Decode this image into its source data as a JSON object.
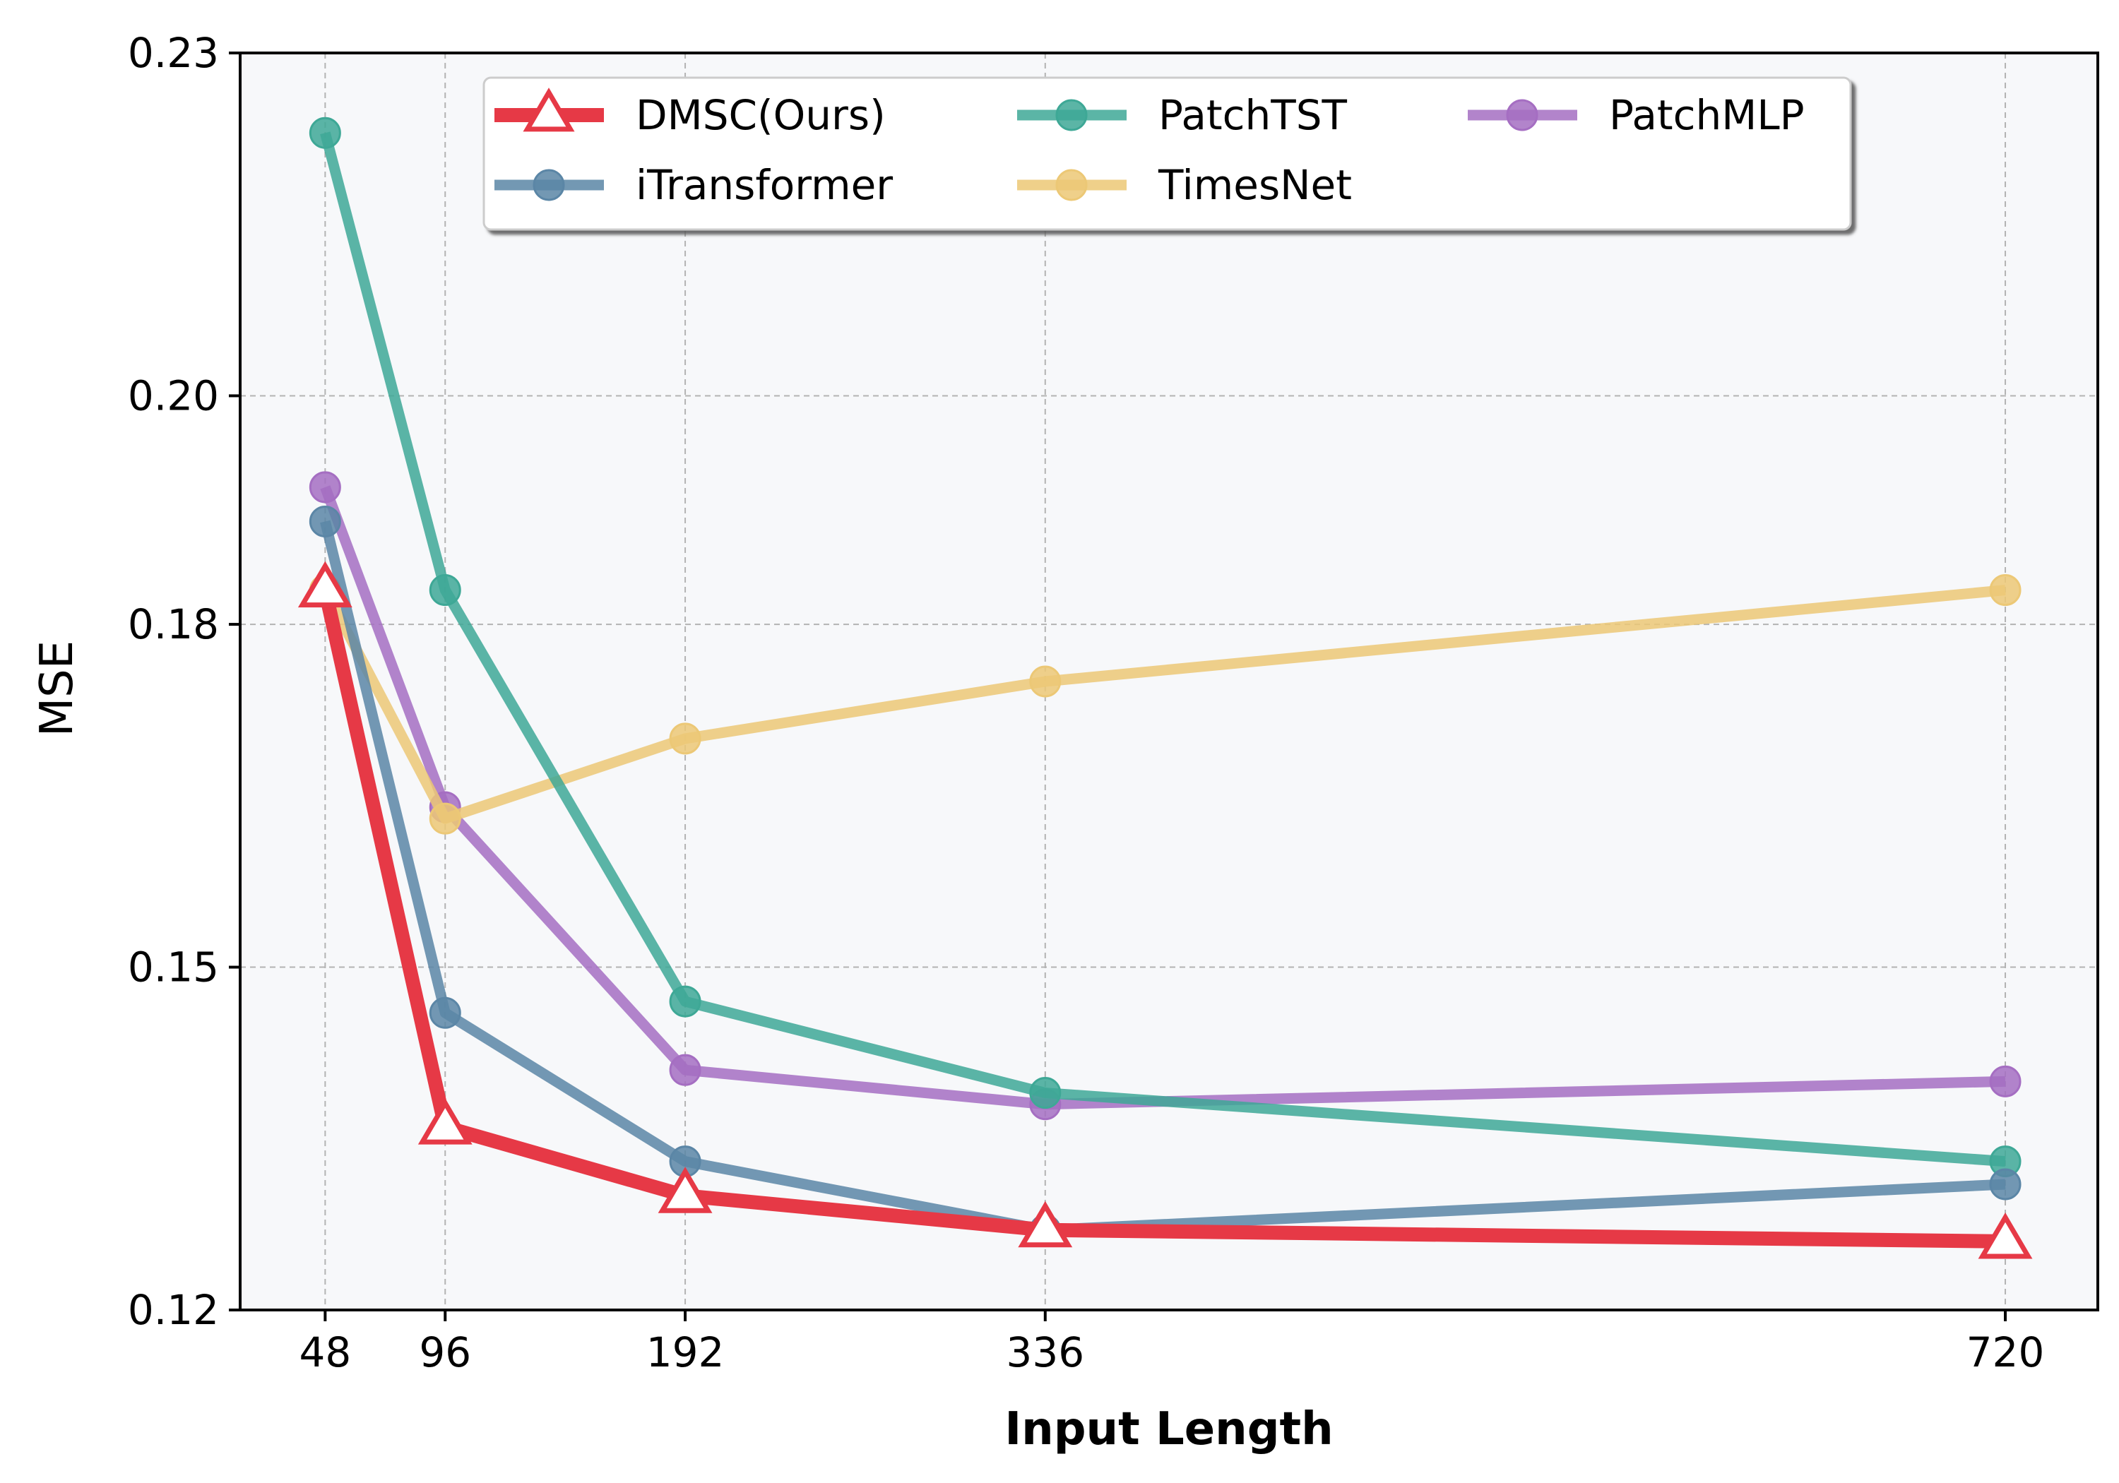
{
  "chart_data": {
    "type": "line",
    "title": "",
    "xlabel": "Input Length",
    "ylabel": "MSE",
    "x": [
      48,
      96,
      192,
      336,
      720
    ],
    "x_tick_labels": [
      "48",
      "96",
      "192",
      "336",
      "720"
    ],
    "y_ticks": [
      0.12,
      0.15,
      0.18,
      0.2,
      0.23
    ],
    "y_tick_labels": [
      "0.12",
      "0.15",
      "0.18",
      "0.20",
      "0.23"
    ],
    "ylim": [
      0.12,
      0.23
    ],
    "grid": true,
    "legend_position": "top-center",
    "series": [
      {
        "name": "DMSC(Ours)",
        "marker": "triangle",
        "color": "#e63946",
        "values": [
          0.183,
          0.136,
          0.13,
          0.127,
          0.126
        ]
      },
      {
        "name": "iTransformer",
        "marker": "circle",
        "color": "#5b86a6",
        "values": [
          0.189,
          0.146,
          0.133,
          0.127,
          0.131
        ]
      },
      {
        "name": "PatchTST",
        "marker": "circle",
        "color": "#3ea896",
        "values": [
          0.223,
          0.183,
          0.147,
          0.139,
          0.133
        ]
      },
      {
        "name": "TimesNet",
        "marker": "circle",
        "color": "#ecc876",
        "values": [
          0.183,
          0.163,
          0.17,
          0.175,
          0.183
        ]
      },
      {
        "name": "PatchMLP",
        "marker": "circle",
        "color": "#a56ec2",
        "values": [
          0.192,
          0.164,
          0.141,
          0.138,
          0.14
        ]
      }
    ]
  }
}
